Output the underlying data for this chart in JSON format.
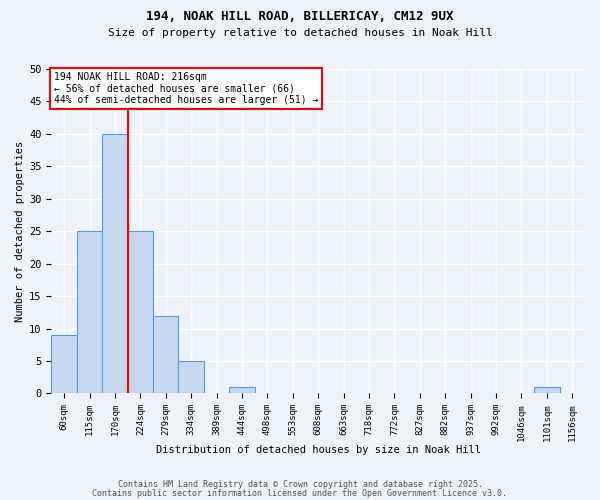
{
  "title1": "194, NOAK HILL ROAD, BILLERICAY, CM12 9UX",
  "title2": "Size of property relative to detached houses in Noak Hill",
  "xlabel": "Distribution of detached houses by size in Noak Hill",
  "ylabel": "Number of detached properties",
  "categories": [
    "60sqm",
    "115sqm",
    "170sqm",
    "224sqm",
    "279sqm",
    "334sqm",
    "389sqm",
    "444sqm",
    "498sqm",
    "553sqm",
    "608sqm",
    "663sqm",
    "718sqm",
    "772sqm",
    "827sqm",
    "882sqm",
    "937sqm",
    "992sqm",
    "1046sqm",
    "1101sqm",
    "1156sqm"
  ],
  "values": [
    9,
    25,
    40,
    25,
    12,
    5,
    0,
    1,
    0,
    0,
    0,
    0,
    0,
    0,
    0,
    0,
    0,
    0,
    0,
    1,
    0
  ],
  "bar_color": "#c5d8f0",
  "bar_edge_color": "#5b9bd5",
  "property_line_x": 2.5,
  "annotation_line1": "194 NOAK HILL ROAD: 216sqm",
  "annotation_line2": "← 56% of detached houses are smaller (66)",
  "annotation_line3": "44% of semi-detached houses are larger (51) →",
  "annotation_box_color": "white",
  "annotation_box_edge_color": "red",
  "vline_color": "red",
  "ylim": [
    0,
    50
  ],
  "yticks": [
    0,
    5,
    10,
    15,
    20,
    25,
    30,
    35,
    40,
    45,
    50
  ],
  "footer1": "Contains HM Land Registry data © Crown copyright and database right 2025.",
  "footer2": "Contains public sector information licensed under the Open Government Licence v3.0.",
  "bg_color": "#eef2fb",
  "plot_bg_color": "#eef2fb",
  "grid_color": "white"
}
